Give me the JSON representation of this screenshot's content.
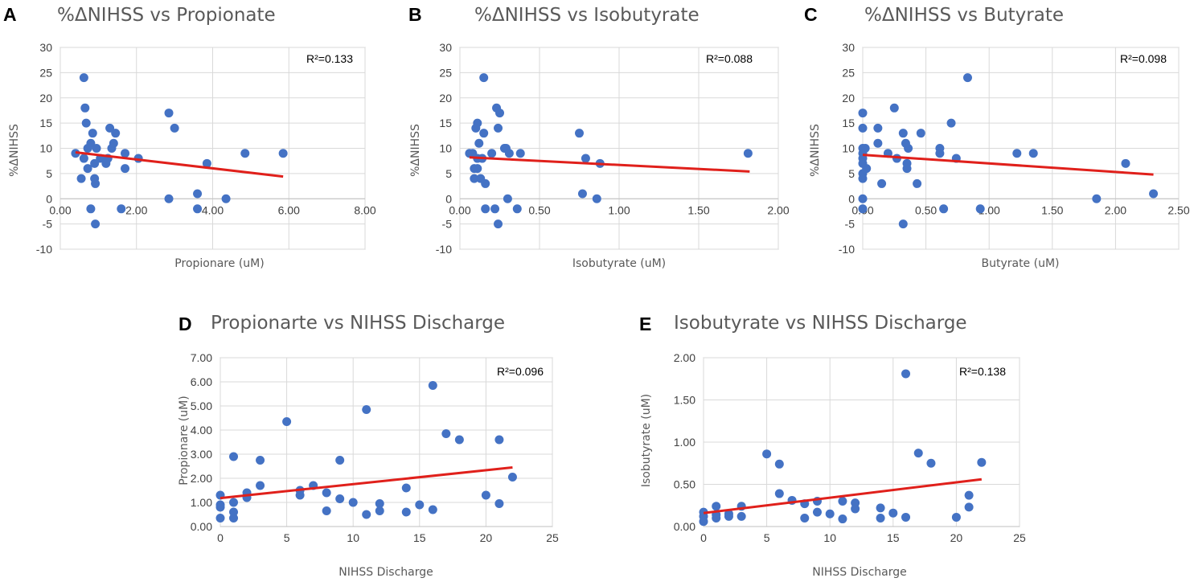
{
  "chart_data": [
    {
      "panel": "A",
      "type": "scatter",
      "title": "%ΔNIHSS vs Propionate",
      "xlabel": "Propionare (uM)",
      "ylabel": "%ΔNIHSS",
      "xlim": [
        0,
        8
      ],
      "ylim": [
        -10,
        30
      ],
      "xticks": [
        0,
        2,
        4,
        6,
        8
      ],
      "yticks": [
        -10,
        -5,
        0,
        5,
        10,
        15,
        20,
        25,
        30
      ],
      "xtick_labels": [
        "0.00",
        "2.00",
        "4.00",
        "6.00",
        "8.00"
      ],
      "ytick_labels": [
        "-10",
        "-5",
        "0",
        "5",
        "10",
        "15",
        "20",
        "25",
        "30"
      ],
      "r2": "R²=0.133",
      "trendline": {
        "x1": 0.4,
        "y1": 9.2,
        "x2": 5.85,
        "y2": 4.4
      },
      "points": [
        [
          0.4,
          9
        ],
        [
          0.55,
          4
        ],
        [
          0.62,
          24
        ],
        [
          0.65,
          18
        ],
        [
          0.68,
          15
        ],
        [
          0.72,
          10
        ],
        [
          0.62,
          8
        ],
        [
          0.72,
          6
        ],
        [
          0.8,
          11
        ],
        [
          0.85,
          13
        ],
        [
          0.8,
          -2
        ],
        [
          0.9,
          7
        ],
        [
          0.9,
          4
        ],
        [
          0.92,
          3
        ],
        [
          0.92,
          -5
        ],
        [
          0.95,
          10
        ],
        [
          1.05,
          8
        ],
        [
          1.2,
          7
        ],
        [
          1.25,
          8
        ],
        [
          1.3,
          14
        ],
        [
          1.35,
          10
        ],
        [
          1.4,
          11
        ],
        [
          1.45,
          13
        ],
        [
          1.7,
          6
        ],
        [
          1.7,
          9
        ],
        [
          1.6,
          -2
        ],
        [
          2.05,
          8
        ],
        [
          2.85,
          17
        ],
        [
          3.0,
          14
        ],
        [
          2.85,
          0
        ],
        [
          3.6,
          1
        ],
        [
          3.6,
          -2
        ],
        [
          3.85,
          7
        ],
        [
          4.35,
          0
        ],
        [
          4.85,
          9
        ],
        [
          5.85,
          9
        ]
      ]
    },
    {
      "panel": "B",
      "type": "scatter",
      "title": "%ΔNIHSS vs Isobutyrate",
      "xlabel": "Isobutyrate (uM)",
      "ylabel": "%ΔNIHSS",
      "xlim": [
        0,
        2
      ],
      "ylim": [
        -10,
        30
      ],
      "xticks": [
        0,
        0.5,
        1,
        1.5,
        2
      ],
      "yticks": [
        -10,
        -5,
        0,
        5,
        10,
        15,
        20,
        25,
        30
      ],
      "xtick_labels": [
        "0.00",
        "0.50",
        "1.00",
        "1.50",
        "2.00"
      ],
      "ytick_labels": [
        "-10",
        "-5",
        "0",
        "5",
        "10",
        "15",
        "20",
        "25",
        "30"
      ],
      "r2": "R²=0.088",
      "trendline": {
        "x1": 0.06,
        "y1": 8.2,
        "x2": 1.82,
        "y2": 5.4
      },
      "points": [
        [
          0.06,
          9
        ],
        [
          0.08,
          9
        ],
        [
          0.09,
          6
        ],
        [
          0.09,
          4
        ],
        [
          0.1,
          14
        ],
        [
          0.11,
          15
        ],
        [
          0.11,
          8
        ],
        [
          0.11,
          6
        ],
        [
          0.12,
          11
        ],
        [
          0.13,
          4
        ],
        [
          0.14,
          8
        ],
        [
          0.15,
          24
        ],
        [
          0.15,
          13
        ],
        [
          0.16,
          3
        ],
        [
          0.16,
          -2
        ],
        [
          0.2,
          9
        ],
        [
          0.22,
          -2
        ],
        [
          0.23,
          18
        ],
        [
          0.24,
          14
        ],
        [
          0.25,
          17
        ],
        [
          0.24,
          -5
        ],
        [
          0.28,
          10
        ],
        [
          0.29,
          10
        ],
        [
          0.31,
          9
        ],
        [
          0.3,
          0
        ],
        [
          0.36,
          -2
        ],
        [
          0.38,
          9
        ],
        [
          0.75,
          13
        ],
        [
          0.77,
          1
        ],
        [
          0.79,
          8
        ],
        [
          0.86,
          0
        ],
        [
          0.88,
          7
        ],
        [
          1.81,
          9
        ]
      ]
    },
    {
      "panel": "C",
      "type": "scatter",
      "title": "%ΔNIHSS vs Butyrate",
      "xlabel": "Butyrate (uM)",
      "ylabel": "%ΔNIHSS",
      "xlim": [
        0,
        2.5
      ],
      "ylim": [
        -10,
        30
      ],
      "xticks": [
        0,
        0.5,
        1,
        1.5,
        2,
        2.5
      ],
      "yticks": [
        -10,
        -5,
        0,
        5,
        10,
        15,
        20,
        25,
        30
      ],
      "xtick_labels": [
        "0.00",
        "0.50",
        "1.00",
        "1.50",
        "2.00",
        "2.50"
      ],
      "ytick_labels": [
        "-10",
        "-5",
        "0",
        "5",
        "10",
        "15",
        "20",
        "25",
        "30"
      ],
      "r2": "R²=0.098",
      "trendline": {
        "x1": 0.0,
        "y1": 8.7,
        "x2": 2.3,
        "y2": 4.8
      },
      "points": [
        [
          0.0,
          17
        ],
        [
          0.0,
          14
        ],
        [
          0.0,
          10
        ],
        [
          0.0,
          9
        ],
        [
          0.0,
          8
        ],
        [
          0.0,
          7
        ],
        [
          0.0,
          5
        ],
        [
          0.0,
          4
        ],
        [
          0.0,
          0
        ],
        [
          0.0,
          -2
        ],
        [
          0.02,
          10
        ],
        [
          0.03,
          6
        ],
        [
          0.12,
          14
        ],
        [
          0.12,
          11
        ],
        [
          0.15,
          3
        ],
        [
          0.2,
          9
        ],
        [
          0.25,
          18
        ],
        [
          0.27,
          8
        ],
        [
          0.32,
          13
        ],
        [
          0.34,
          11
        ],
        [
          0.35,
          7
        ],
        [
          0.35,
          6
        ],
        [
          0.36,
          10
        ],
        [
          0.43,
          3
        ],
        [
          0.46,
          13
        ],
        [
          0.32,
          -5
        ],
        [
          0.61,
          10
        ],
        [
          0.61,
          9
        ],
        [
          0.64,
          -2
        ],
        [
          0.7,
          15
        ],
        [
          0.74,
          8
        ],
        [
          0.83,
          24
        ],
        [
          0.93,
          -2
        ],
        [
          1.22,
          9
        ],
        [
          1.35,
          9
        ],
        [
          1.85,
          0
        ],
        [
          2.08,
          7
        ],
        [
          2.3,
          1
        ]
      ]
    },
    {
      "panel": "D",
      "type": "scatter",
      "title": "Propionarte vs NIHSS Discharge",
      "xlabel": "NIHSS Discharge",
      "ylabel": "Propionare (uM)",
      "xlim": [
        0,
        25
      ],
      "ylim": [
        0,
        7
      ],
      "xticks": [
        0,
        5,
        10,
        15,
        20,
        25
      ],
      "yticks": [
        0,
        1,
        2,
        3,
        4,
        5,
        6,
        7
      ],
      "xtick_labels": [
        "0",
        "5",
        "10",
        "15",
        "20",
        "25"
      ],
      "ytick_labels": [
        "0.00",
        "1.00",
        "2.00",
        "3.00",
        "4.00",
        "5.00",
        "6.00",
        "7.00"
      ],
      "r2": "R²=0.096",
      "trendline": {
        "x1": 0,
        "y1": 1.18,
        "x2": 22,
        "y2": 2.45
      },
      "points": [
        [
          0,
          1.3
        ],
        [
          0,
          0.9
        ],
        [
          0,
          0.8
        ],
        [
          0,
          0.35
        ],
        [
          1,
          2.9
        ],
        [
          1,
          1.0
        ],
        [
          1,
          0.6
        ],
        [
          1,
          0.35
        ],
        [
          2,
          1.4
        ],
        [
          2,
          1.2
        ],
        [
          3,
          2.75
        ],
        [
          3,
          1.7
        ],
        [
          5,
          4.35
        ],
        [
          6,
          1.5
        ],
        [
          6,
          1.3
        ],
        [
          7,
          1.7
        ],
        [
          8,
          1.4
        ],
        [
          8,
          0.65
        ],
        [
          9,
          2.75
        ],
        [
          9,
          1.15
        ],
        [
          10,
          1.0
        ],
        [
          11,
          4.85
        ],
        [
          11,
          0.5
        ],
        [
          12,
          0.95
        ],
        [
          12,
          0.65
        ],
        [
          14,
          1.6
        ],
        [
          14,
          0.6
        ],
        [
          15,
          0.9
        ],
        [
          16,
          5.85
        ],
        [
          16,
          0.7
        ],
        [
          17,
          3.85
        ],
        [
          18,
          3.6
        ],
        [
          20,
          1.3
        ],
        [
          21,
          3.6
        ],
        [
          21,
          0.95
        ],
        [
          22,
          2.05
        ]
      ]
    },
    {
      "panel": "E",
      "type": "scatter",
      "title": "Isobutyrate vs NIHSS Discharge",
      "xlabel": "NIHSS Discharge",
      "ylabel": "Isobutyrate (uM)",
      "xlim": [
        0,
        25
      ],
      "ylim": [
        0,
        2
      ],
      "xticks": [
        0,
        5,
        10,
        15,
        20,
        25
      ],
      "yticks": [
        0,
        0.5,
        1,
        1.5,
        2
      ],
      "xtick_labels": [
        "0",
        "5",
        "10",
        "15",
        "20",
        "25"
      ],
      "ytick_labels": [
        "0.00",
        "0.50",
        "1.00",
        "1.50",
        "2.00"
      ],
      "r2": "R²=0.138",
      "trendline": {
        "x1": 0,
        "y1": 0.16,
        "x2": 22,
        "y2": 0.56
      },
      "points": [
        [
          0,
          0.17
        ],
        [
          0,
          0.12
        ],
        [
          0,
          0.06
        ],
        [
          1,
          0.24
        ],
        [
          1,
          0.14
        ],
        [
          1,
          0.1
        ],
        [
          2,
          0.15
        ],
        [
          2,
          0.12
        ],
        [
          3,
          0.24
        ],
        [
          3,
          0.12
        ],
        [
          5,
          0.86
        ],
        [
          6,
          0.74
        ],
        [
          6,
          0.39
        ],
        [
          7,
          0.31
        ],
        [
          8,
          0.27
        ],
        [
          8,
          0.1
        ],
        [
          9,
          0.3
        ],
        [
          9,
          0.17
        ],
        [
          10,
          0.15
        ],
        [
          11,
          0.3
        ],
        [
          11,
          0.09
        ],
        [
          12,
          0.28
        ],
        [
          12,
          0.21
        ],
        [
          14,
          0.22
        ],
        [
          14,
          0.1
        ],
        [
          15,
          0.16
        ],
        [
          16,
          1.81
        ],
        [
          16,
          0.11
        ],
        [
          17,
          0.87
        ],
        [
          18,
          0.75
        ],
        [
          20,
          0.11
        ],
        [
          21,
          0.37
        ],
        [
          21,
          0.23
        ],
        [
          22,
          0.76
        ]
      ]
    }
  ]
}
